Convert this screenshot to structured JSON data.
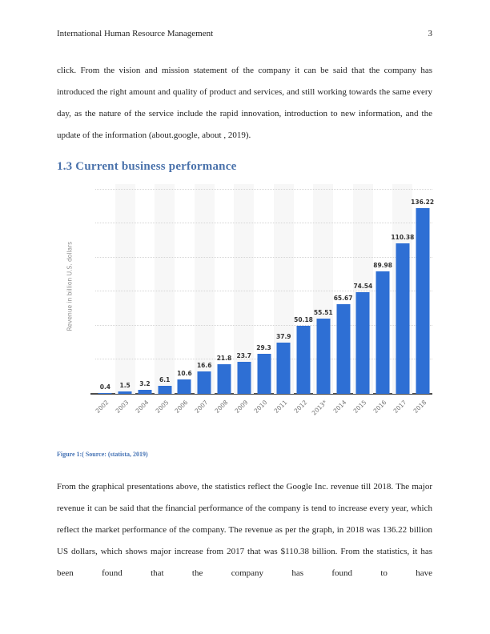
{
  "page": {
    "header": {
      "title": "International Human Resource Management",
      "page_number": "3"
    },
    "paragraph_1": "click. From the vision and mission statement of the company it can be said that the company has introduced the right amount and quality of product and services, and still working towards the same every day, as the nature of the service include the rapid innovation, introduction to new information, and the update of the information (about.google, about , 2019).",
    "section_heading": "1.3 Current business performance",
    "figure_caption": "Figure 1:( Source: (statista, 2019)",
    "paragraph_2": "From the graphical presentations above, the statistics reflect the Google Inc. revenue till 2018. The major revenue it can be said that the financial performance of the company is tend to increase every year, which reflect the market performance of the company. The revenue as per the graph, in 2018 was 136.22 billion US dollars, which shows major increase from 2017 that was $110.38 billion. From the statistics, it has been found that the company has found to have"
  },
  "chart_data": {
    "type": "bar",
    "title": "",
    "categories": [
      "2002",
      "2003",
      "2004",
      "2005",
      "2006",
      "2007",
      "2008",
      "2009",
      "2010",
      "2011",
      "2012",
      "2013*",
      "2014",
      "2015",
      "2016",
      "2017",
      "2018"
    ],
    "values": [
      0.4,
      1.5,
      3.2,
      6.1,
      10.6,
      16.6,
      21.8,
      23.7,
      29.3,
      37.9,
      50.18,
      55.51,
      65.67,
      74.54,
      89.98,
      110.38,
      136.22
    ],
    "value_labels": [
      "0.4",
      "1.5",
      "3.2",
      "6.1",
      "10.6",
      "16.6",
      "21.8",
      "23.7",
      "29.3",
      "37.9",
      "50.18",
      "55.51",
      "65.67",
      "74.54",
      "89.98",
      "110.38",
      "136.22"
    ],
    "xlabel": "",
    "ylabel": "Revenue in billion U.S. dollars",
    "ylim": [
      0,
      154
    ],
    "gridline_values": [
      25,
      50,
      75,
      100,
      125,
      150
    ],
    "grid": "horizontal-dotted",
    "legend_position": "none",
    "bar_color": "#2e6fd4",
    "band_color": "#f7f7f7"
  },
  "colors": {
    "heading_blue": "#4a72ab",
    "caption_blue": "#4472b4",
    "body_text": "#1f1f1f"
  }
}
